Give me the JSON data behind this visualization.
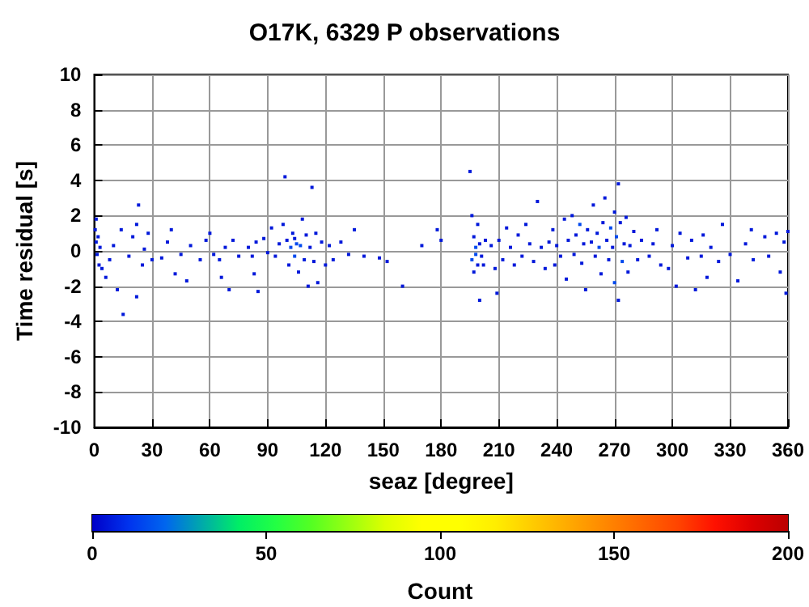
{
  "chart_data": {
    "type": "scatter",
    "title": "O17K, 6329 P observations",
    "xlabel": "seaz [degree]",
    "ylabel": "Time residual [s]",
    "clabel": "Count",
    "clim": [
      0,
      200
    ],
    "cticks": [
      0,
      50,
      100,
      150,
      200
    ],
    "xlim": [
      0,
      360
    ],
    "xticks": [
      0,
      30,
      60,
      90,
      120,
      150,
      180,
      210,
      240,
      270,
      300,
      330,
      360
    ],
    "ylim": [
      -10,
      10
    ],
    "yticks": [
      -10,
      -8,
      -6,
      -4,
      -2,
      0,
      2,
      4,
      6,
      8,
      10
    ],
    "grid": true,
    "marker": "square",
    "x": [
      0.5,
      1,
      1.5,
      2,
      2.5,
      3,
      4,
      1,
      6,
      8,
      10,
      12,
      14,
      15,
      18,
      20,
      22,
      22,
      23,
      25,
      26,
      28,
      30,
      35,
      38,
      40,
      42,
      45,
      48,
      50,
      55,
      58,
      60,
      62,
      65,
      66,
      68,
      70,
      72,
      75,
      80,
      82,
      83,
      84,
      85,
      88,
      90,
      92,
      94,
      96,
      98,
      99,
      100,
      101,
      102,
      103,
      104,
      104,
      105,
      106,
      107,
      108,
      109,
      110,
      111,
      112,
      113,
      114,
      115,
      116,
      118,
      120,
      122,
      124,
      128,
      132,
      135,
      140,
      148,
      152,
      160,
      170,
      178,
      180,
      195,
      196,
      196,
      197,
      197,
      198,
      198,
      199,
      199,
      200,
      200,
      201,
      202,
      203,
      206,
      208,
      209,
      210,
      212,
      214,
      216,
      218,
      220,
      222,
      224,
      226,
      228,
      230,
      232,
      234,
      236,
      238,
      239,
      240,
      242,
      244,
      245,
      246,
      248,
      249,
      250,
      252,
      253,
      254,
      255,
      256,
      258,
      259,
      260,
      261,
      262,
      263,
      264,
      265,
      266,
      267,
      268,
      269,
      270,
      270,
      271,
      272,
      272,
      273,
      274,
      275,
      276,
      277,
      278,
      280,
      282,
      284,
      288,
      290,
      292,
      294,
      298,
      300,
      302,
      304,
      308,
      310,
      312,
      315,
      316,
      318,
      320,
      324,
      326,
      330,
      334,
      338,
      341,
      342,
      348,
      350,
      354,
      356,
      358,
      359,
      360
    ],
    "values": [
      1.2,
      0.5,
      -0.2,
      0.8,
      -0.8,
      0.2,
      -1.0,
      1.8,
      -1.5,
      -0.5,
      0.3,
      -2.2,
      1.2,
      -3.6,
      -0.3,
      0.8,
      1.5,
      -2.6,
      2.6,
      -0.8,
      0.1,
      1.0,
      -0.5,
      -0.4,
      0.5,
      1.2,
      -1.3,
      -0.2,
      -1.7,
      0.3,
      -0.5,
      0.6,
      1.0,
      -0.2,
      -0.5,
      -1.5,
      0.2,
      -2.2,
      0.6,
      -0.3,
      0.2,
      -0.3,
      -1.3,
      0.5,
      -2.3,
      0.7,
      -0.1,
      1.3,
      -0.3,
      0.4,
      1.5,
      4.2,
      0.6,
      -0.8,
      0.2,
      1.0,
      -0.3,
      0.7,
      0.4,
      -1.2,
      0.3,
      1.8,
      -0.5,
      0.9,
      -2.0,
      0.2,
      3.6,
      -0.6,
      1.0,
      -1.8,
      0.5,
      -0.8,
      0.3,
      -0.5,
      0.5,
      -0.2,
      1.2,
      -0.3,
      -0.4,
      -0.6,
      -2.0,
      0.3,
      1.2,
      0.6,
      4.5,
      2.0,
      -0.5,
      0.8,
      -1.2,
      0.2,
      -0.2,
      1.5,
      -0.8,
      0.4,
      -2.8,
      -0.3,
      -0.8,
      0.6,
      0.3,
      -1.0,
      -2.4,
      0.6,
      -0.5,
      1.3,
      0.2,
      -0.8,
      0.9,
      -0.3,
      1.5,
      0.4,
      -0.6,
      2.8,
      0.2,
      -1.0,
      0.5,
      1.2,
      -0.8,
      0.3,
      -0.3,
      1.8,
      -1.6,
      0.6,
      2.0,
      -0.2,
      0.9,
      1.5,
      -0.7,
      0.4,
      -2.2,
      1.2,
      0.5,
      2.6,
      -0.3,
      1.0,
      0.2,
      -1.3,
      1.6,
      3.0,
      0.6,
      -0.5,
      1.3,
      0.2,
      2.2,
      -1.8,
      0.8,
      3.8,
      -2.8,
      1.6,
      -0.6,
      0.4,
      1.9,
      -1.2,
      0.3,
      1.1,
      -0.5,
      0.6,
      -0.3,
      0.4,
      1.2,
      -0.8,
      -1.0,
      0.3,
      -2.0,
      1.0,
      -0.4,
      0.6,
      -2.2,
      -0.3,
      0.9,
      -1.5,
      0.2,
      -0.6,
      1.5,
      -0.2,
      -1.7,
      0.4,
      1.2,
      -0.5,
      0.8,
      -0.3,
      1.0,
      -1.2,
      0.5,
      -2.4,
      1.1
    ],
    "cvalues": [
      5,
      5,
      5,
      5,
      5,
      5,
      5,
      5,
      5,
      5,
      5,
      5,
      5,
      5,
      5,
      5,
      5,
      5,
      5,
      5,
      5,
      5,
      5,
      5,
      5,
      5,
      5,
      5,
      5,
      5,
      5,
      5,
      5,
      5,
      5,
      5,
      5,
      5,
      5,
      5,
      5,
      5,
      5,
      5,
      5,
      5,
      5,
      5,
      5,
      5,
      5,
      5,
      5,
      5,
      15,
      5,
      15,
      5,
      15,
      5,
      15,
      5,
      5,
      5,
      5,
      5,
      5,
      5,
      5,
      5,
      5,
      5,
      5,
      5,
      5,
      5,
      5,
      5,
      5,
      5,
      5,
      5,
      5,
      5,
      5,
      5,
      15,
      5,
      5,
      15,
      15,
      5,
      5,
      5,
      5,
      5,
      5,
      5,
      5,
      5,
      5,
      5,
      5,
      5,
      5,
      5,
      5,
      5,
      5,
      5,
      5,
      5,
      5,
      5,
      5,
      5,
      5,
      5,
      5,
      5,
      5,
      5,
      5,
      5,
      5,
      15,
      5,
      5,
      5,
      5,
      5,
      5,
      5,
      5,
      15,
      5,
      5,
      5,
      5,
      5,
      15,
      5,
      5,
      15,
      15,
      5,
      5,
      5,
      15,
      5,
      5,
      5,
      5,
      5,
      5,
      5,
      5,
      5,
      5,
      5,
      5,
      5,
      5,
      5,
      5,
      5,
      5,
      5,
      5,
      5,
      5,
      5,
      5,
      5,
      5,
      5,
      5,
      5,
      5,
      5,
      5,
      5,
      5,
      5,
      5
    ]
  }
}
